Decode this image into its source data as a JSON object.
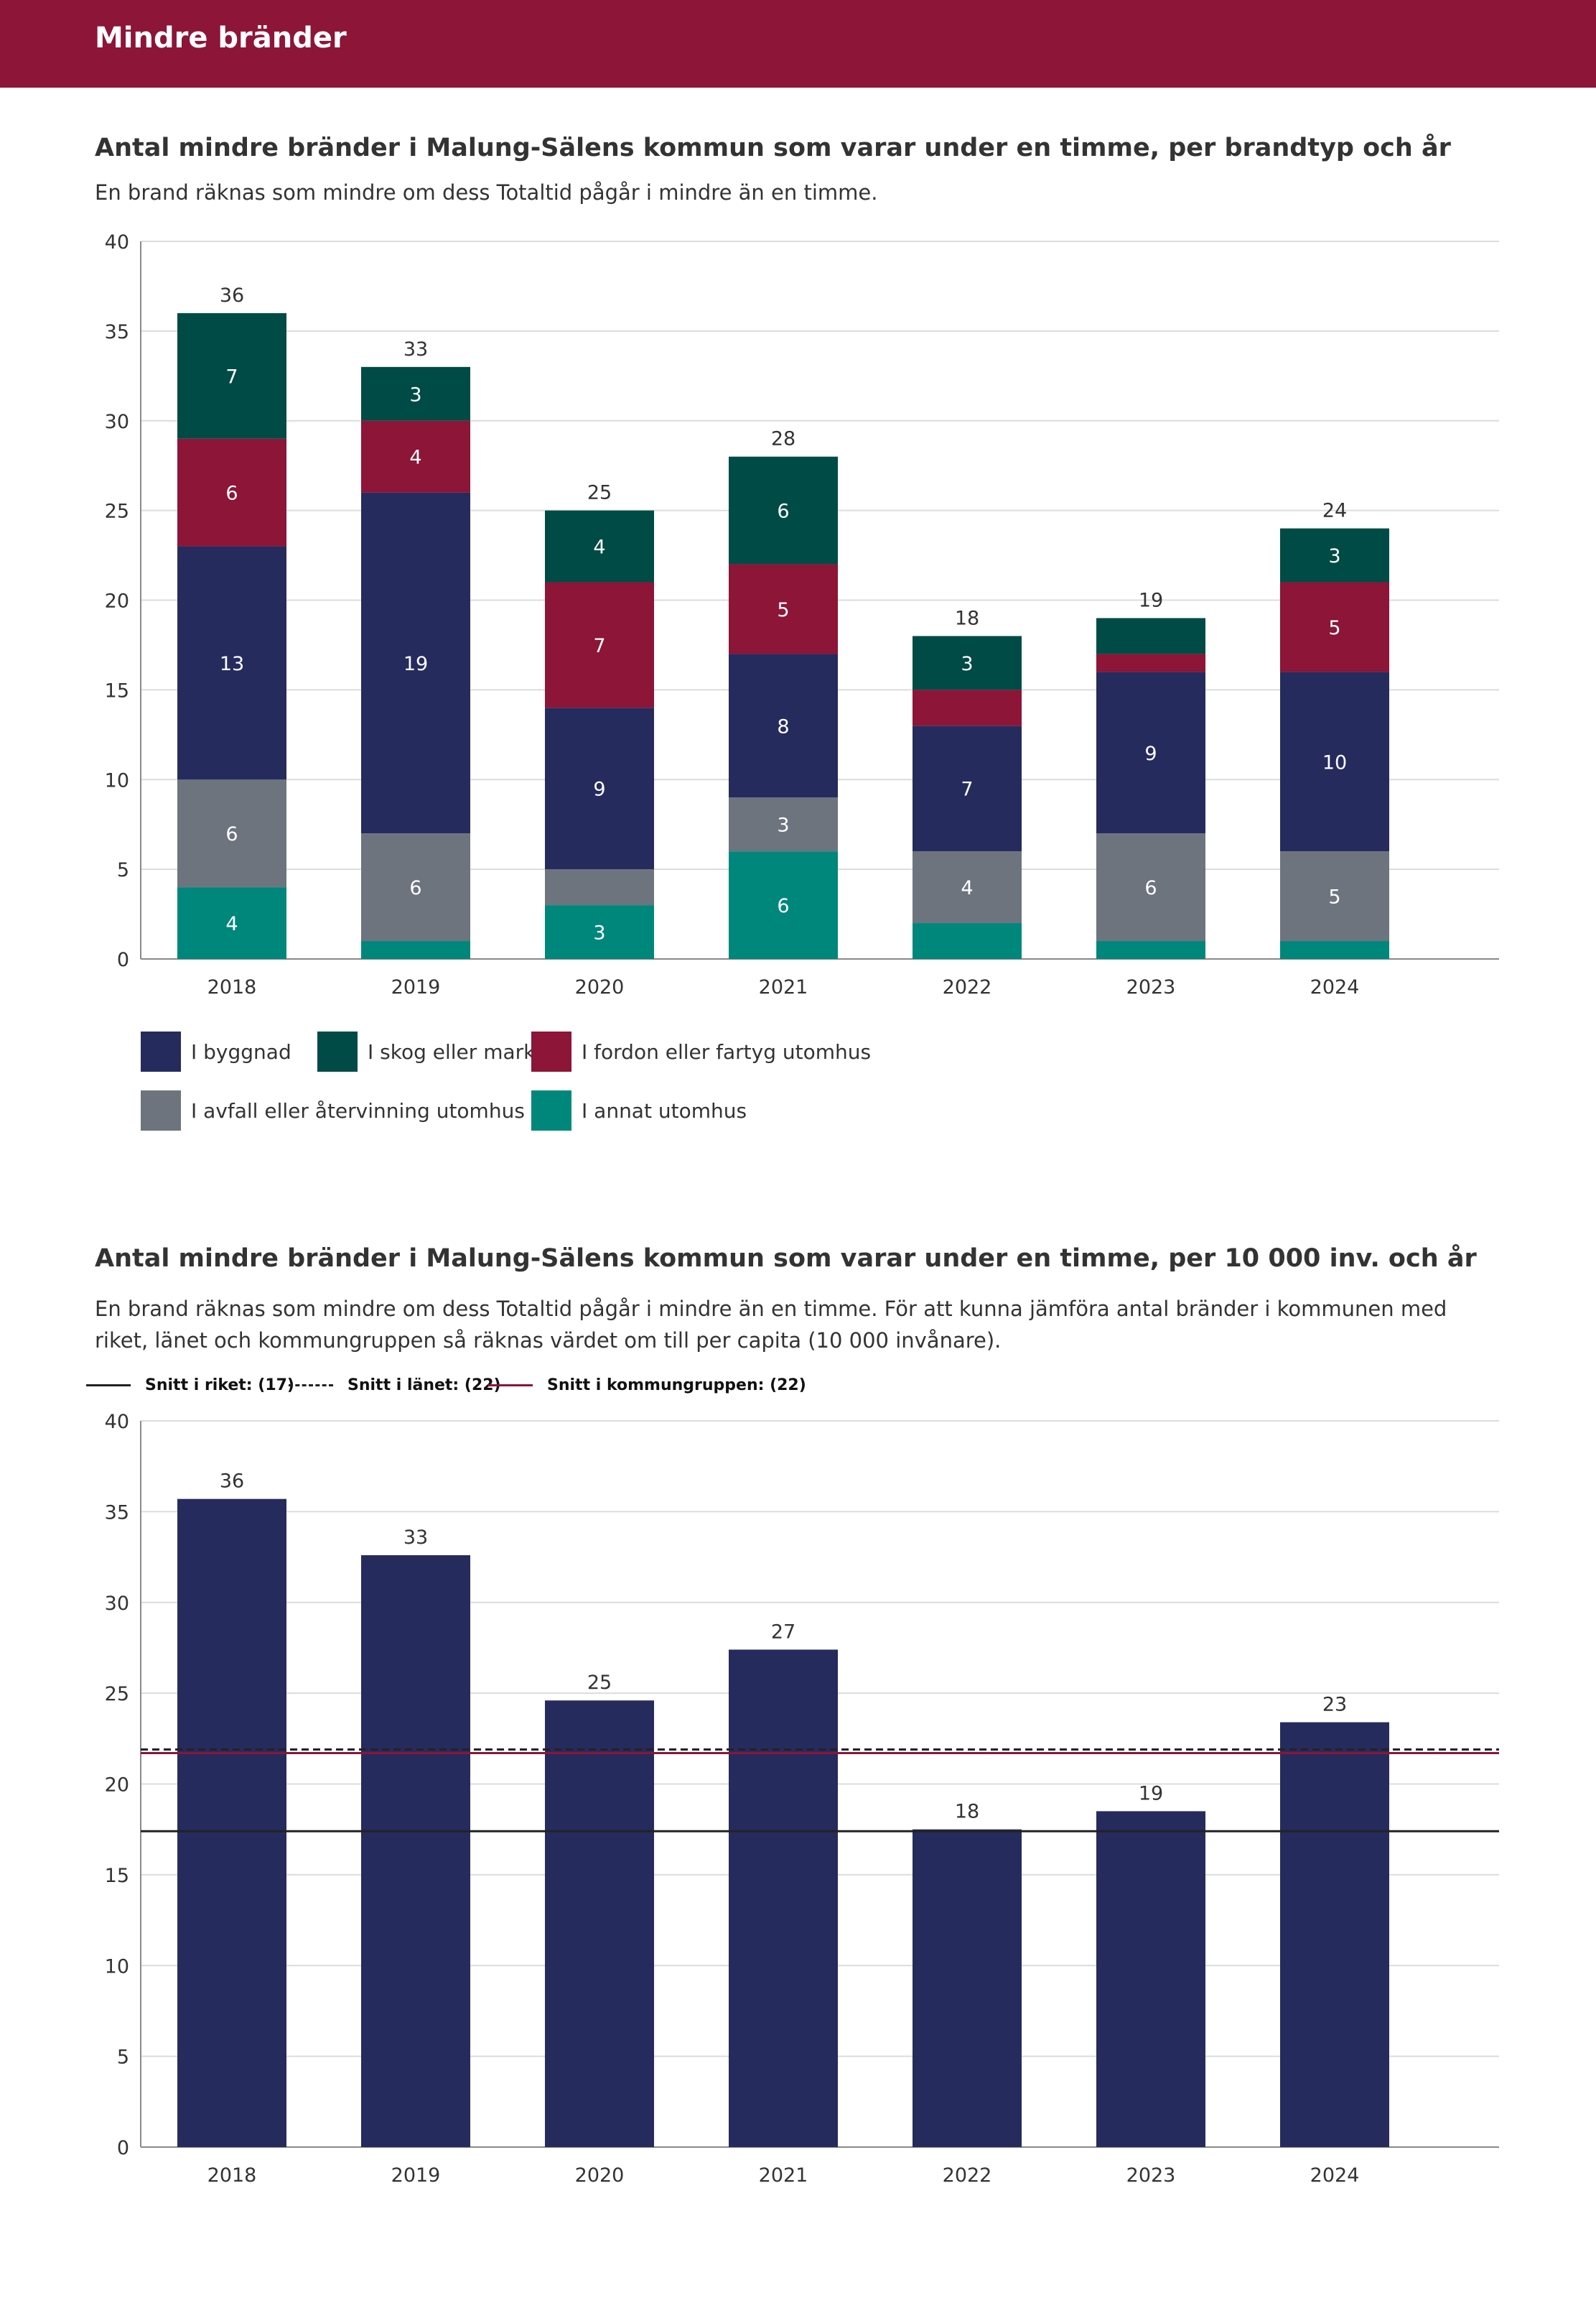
{
  "header": {
    "title": "Mindre bränder"
  },
  "chart1": {
    "title": "Antal mindre bränder i Malung-Sälens kommun som varar under en timme, per brandtyp och år",
    "subtitle": "En brand räknas som mindre om dess Totaltid pågår i mindre än en timme."
  },
  "chart2": {
    "title": "Antal mindre bränder i Malung-Sälens kommun som varar under en timme, per 10 000 inv. och år",
    "subtitle": "En brand räknas som mindre om dess Totaltid pågår i mindre än en timme. För att kunna jämföra antal bränder i kommunen med riket, länet och kommungruppen så räknas värdet om till per capita (10 000 invånare).",
    "ref_legend": [
      {
        "label": "Snitt i riket: (17)",
        "color": "#222222",
        "style": "solid"
      },
      {
        "label": "Snitt i länet: (22)",
        "color": "#222222",
        "style": "dashed"
      },
      {
        "label": "Snitt i kommungruppen: (22)",
        "color": "#8c1538",
        "style": "solid"
      }
    ]
  },
  "legend1": [
    {
      "label": "I byggnad",
      "color": "#262b5e"
    },
    {
      "label": "I skog eller mark",
      "color": "#004b45"
    },
    {
      "label": "I fordon eller fartyg utomhus",
      "color": "#8c1538"
    },
    {
      "label": "I avfall eller återvinning utomhus",
      "color": "#6d747e"
    },
    {
      "label": "I annat utomhus",
      "color": "#00877c"
    }
  ],
  "chart_data": [
    {
      "type": "bar",
      "stacked": true,
      "categories": [
        "2018",
        "2019",
        "2020",
        "2021",
        "2022",
        "2023",
        "2024"
      ],
      "ylim": [
        0,
        40
      ],
      "yticks": [
        0,
        5,
        10,
        15,
        20,
        25,
        30,
        35,
        40
      ],
      "grid": true,
      "legend_placement": "bottom",
      "totals": [
        36,
        33,
        25,
        28,
        18,
        19,
        24
      ],
      "series": [
        {
          "name": "I annat utomhus",
          "color": "#00877c",
          "values": [
            4,
            1,
            3,
            6,
            2,
            1,
            1
          ],
          "labels": [
            "4",
            "",
            "3",
            "6",
            "",
            "",
            ""
          ]
        },
        {
          "name": "I avfall eller återvinning utomhus",
          "color": "#6d747e",
          "values": [
            6,
            6,
            2,
            3,
            4,
            6,
            5
          ],
          "labels": [
            "6",
            "6",
            "",
            "3",
            "4",
            "6",
            "5"
          ]
        },
        {
          "name": "I byggnad",
          "color": "#262b5e",
          "values": [
            13,
            19,
            9,
            8,
            7,
            9,
            10
          ],
          "labels": [
            "13",
            "19",
            "9",
            "8",
            "7",
            "9",
            "10"
          ]
        },
        {
          "name": "I fordon eller fartyg utomhus",
          "color": "#8c1538",
          "values": [
            6,
            4,
            7,
            5,
            2,
            1,
            5
          ],
          "labels": [
            "6",
            "4",
            "7",
            "5",
            "",
            "",
            "5"
          ]
        },
        {
          "name": "I skog eller mark",
          "color": "#004b45",
          "values": [
            7,
            3,
            4,
            6,
            3,
            2,
            3
          ],
          "labels": [
            "7",
            "3",
            "4",
            "6",
            "3",
            "",
            "3"
          ]
        }
      ]
    },
    {
      "type": "bar",
      "categories": [
        "2018",
        "2019",
        "2020",
        "2021",
        "2022",
        "2023",
        "2024"
      ],
      "ylim": [
        0,
        40
      ],
      "yticks": [
        0,
        5,
        10,
        15,
        20,
        25,
        30,
        35,
        40
      ],
      "grid": true,
      "legend_placement": "top-left",
      "values": [
        35.7,
        32.6,
        24.6,
        27.4,
        17.5,
        18.5,
        23.4
      ],
      "labels": [
        "36",
        "33",
        "25",
        "27",
        "18",
        "19",
        "23"
      ],
      "bar_color": "#262b5e",
      "reference_lines": [
        {
          "name": "Snitt i riket",
          "value": 17.4,
          "color": "#222222",
          "style": "solid"
        },
        {
          "name": "Snitt i länet",
          "value": 21.9,
          "color": "#222222",
          "style": "dashed"
        },
        {
          "name": "Snitt i kommungruppen",
          "value": 21.7,
          "color": "#8c1538",
          "style": "solid"
        }
      ]
    }
  ]
}
